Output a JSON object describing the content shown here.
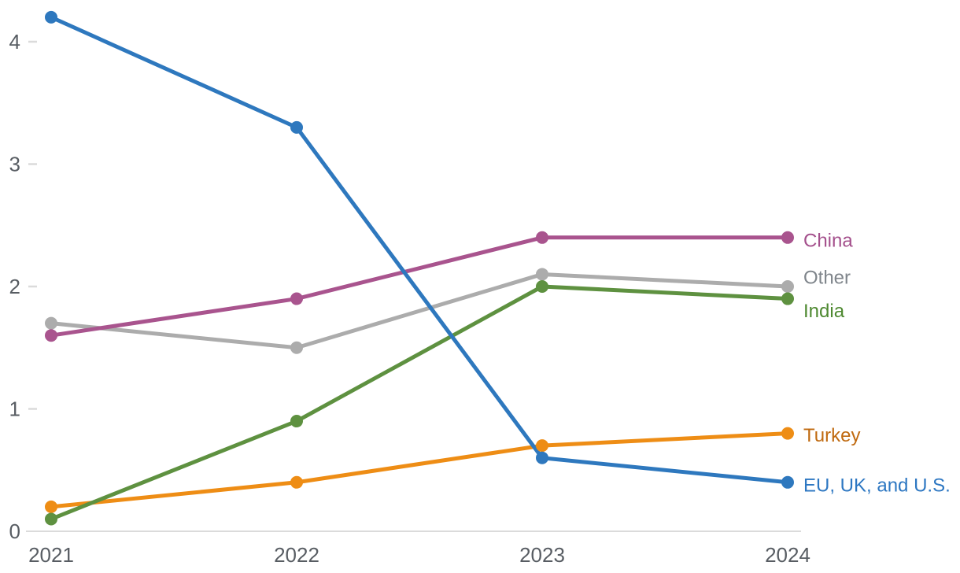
{
  "chart_data": {
    "type": "line",
    "title": "",
    "xlabel": "",
    "ylabel": "",
    "x": [
      "2021",
      "2022",
      "2023",
      "2024"
    ],
    "yticks": [
      0,
      1,
      2,
      3,
      4
    ],
    "ylim": [
      0,
      4.35
    ],
    "grid": false,
    "legend_position": "right-of-last-point",
    "axis_text_color": "#585d63",
    "axis_line_color": "#cfcfcf",
    "tick_dash_color": "#dbdbdb",
    "series": [
      {
        "name": "Other",
        "values": [
          1.7,
          1.5,
          2.1,
          2.0
        ],
        "line_color": "#acacac",
        "label_color": "#7f858b",
        "label_dy": -11
      },
      {
        "name": "China",
        "values": [
          1.6,
          1.9,
          2.4,
          2.4
        ],
        "line_color": "#a9548e",
        "label_color": "#a4508c",
        "label_dy": 4
      },
      {
        "name": "Turkey",
        "values": [
          0.2,
          0.4,
          0.7,
          0.8
        ],
        "line_color": "#ee8d15",
        "label_color": "#c06a10",
        "label_dy": 3
      },
      {
        "name": "India",
        "values": [
          0.1,
          0.9,
          2.0,
          1.9
        ],
        "line_color": "#5e9140",
        "label_color": "#4e8931",
        "label_dy": 16
      },
      {
        "name": "EU, UK, and U.S.",
        "values": [
          4.2,
          3.3,
          0.6,
          0.4
        ],
        "line_color": "#2e78be",
        "label_color": "#2d77c2",
        "label_dy": 4
      }
    ]
  }
}
